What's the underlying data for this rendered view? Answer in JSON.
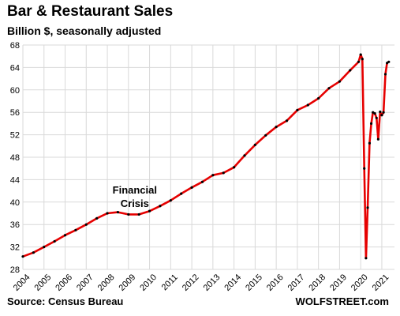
{
  "chart_data": {
    "type": "line",
    "title": "Bar & Restaurant Sales",
    "subtitle": "Billion $, seasonally adjusted",
    "source": "Source: Census Bureau",
    "brand": "WOLFSTREET.com",
    "ylim": [
      28,
      68
    ],
    "y_ticks": [
      28,
      32,
      36,
      40,
      44,
      48,
      52,
      56,
      60,
      64,
      68
    ],
    "xlim": [
      2004,
      2021.6
    ],
    "x_ticks": [
      "2004",
      "2005",
      "2006",
      "2007",
      "2008",
      "2009",
      "2010",
      "2011",
      "2012",
      "2013",
      "2014",
      "2015",
      "2016",
      "2017",
      "2018",
      "2019",
      "2020",
      "2021"
    ],
    "grid": true,
    "annotation": {
      "lines": [
        "Financial",
        "Crisis"
      ],
      "x": 2009.3,
      "y": 41.5
    },
    "series": [
      {
        "color": "#e60000",
        "marker_color": "#000000",
        "x": [
          2004.0,
          2004.5,
          2005.0,
          2005.5,
          2006.0,
          2006.5,
          2007.0,
          2007.5,
          2008.0,
          2008.5,
          2009.0,
          2009.5,
          2010.0,
          2010.5,
          2011.0,
          2011.5,
          2012.0,
          2012.5,
          2013.0,
          2013.5,
          2014.0,
          2014.5,
          2015.0,
          2015.5,
          2016.0,
          2016.5,
          2017.0,
          2017.5,
          2018.0,
          2018.5,
          2019.0,
          2019.5,
          2019.9,
          2020.0,
          2020.08,
          2020.17,
          2020.25,
          2020.33,
          2020.42,
          2020.5,
          2020.58,
          2020.67,
          2020.75,
          2020.83,
          2020.92,
          2021.0,
          2021.08,
          2021.17,
          2021.25,
          2021.33
        ],
        "values": [
          30.3,
          31.0,
          32.0,
          33.0,
          34.1,
          35.0,
          36.0,
          37.1,
          38.0,
          38.2,
          37.8,
          37.8,
          38.4,
          39.3,
          40.3,
          41.5,
          42.6,
          43.6,
          44.8,
          45.2,
          46.2,
          48.3,
          50.2,
          51.9,
          53.4,
          54.5,
          56.4,
          57.3,
          58.5,
          60.3,
          61.5,
          63.5,
          65.0,
          66.3,
          65.5,
          46.0,
          30.0,
          39.0,
          50.5,
          54.0,
          56.0,
          55.8,
          55.0,
          51.2,
          56.1,
          55.5,
          56.0,
          62.8,
          64.8,
          65.0
        ]
      }
    ]
  }
}
